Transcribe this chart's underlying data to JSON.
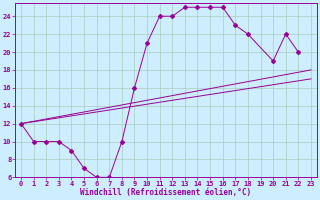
{
  "xlabel": "Windchill (Refroidissement éolien,°C)",
  "bg_color": "#cceeff",
  "grid_color": "#aaccbb",
  "line_color": "#990099",
  "xlim": [
    -0.5,
    23.5
  ],
  "ylim": [
    6,
    25.5
  ],
  "xticks": [
    0,
    1,
    2,
    3,
    4,
    5,
    6,
    7,
    8,
    9,
    10,
    11,
    12,
    13,
    14,
    15,
    16,
    17,
    18,
    19,
    20,
    21,
    22,
    23
  ],
  "yticks": [
    6,
    8,
    10,
    12,
    14,
    16,
    18,
    20,
    22,
    24
  ],
  "curve1_x": [
    0,
    1,
    2,
    3,
    4,
    5,
    6,
    7,
    8,
    9,
    10,
    11,
    12,
    13,
    14,
    15,
    16,
    17,
    18,
    20,
    21,
    22
  ],
  "curve1_y": [
    12,
    10,
    10,
    10,
    9,
    7,
    6,
    6,
    10,
    16,
    21,
    24,
    24,
    25,
    25,
    25,
    25,
    23,
    22,
    19,
    22,
    20
  ],
  "line1_x": [
    0,
    23
  ],
  "line1_y": [
    12,
    18
  ],
  "line2_x": [
    0,
    23
  ],
  "line2_y": [
    12,
    17
  ]
}
